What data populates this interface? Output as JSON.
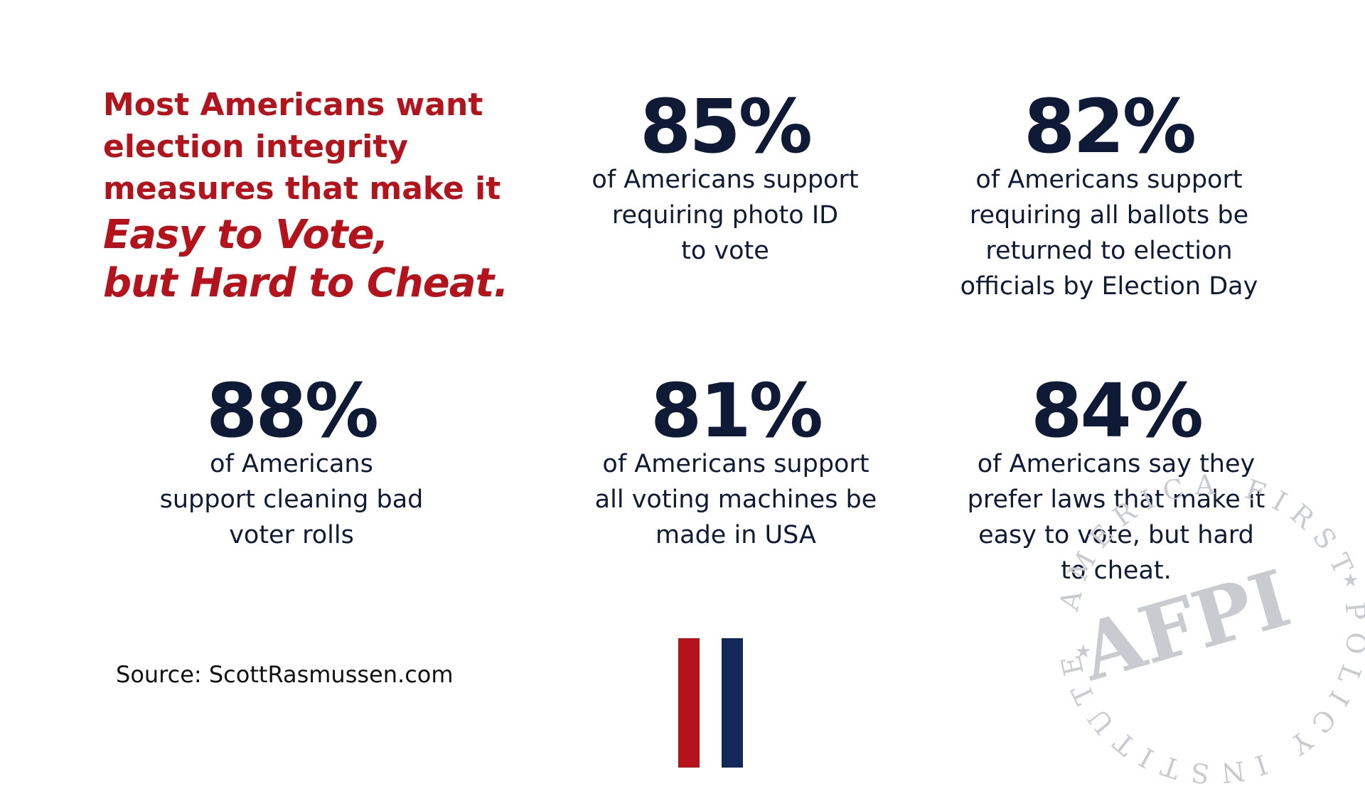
{
  "headline": {
    "lines": [
      "Most Americans want",
      "election integrity",
      "measures that make it"
    ],
    "emphasis": [
      "Easy to Vote,",
      "but Hard to Cheat."
    ],
    "color": "#b5121b"
  },
  "stats": [
    {
      "value": "85%",
      "lines": [
        "of Americans support",
        "requiring photo ID",
        "to vote"
      ]
    },
    {
      "value": "82%",
      "lines": [
        "of Americans support",
        "requiring all ballots be",
        "returned to election",
        "officials by Election Day"
      ]
    },
    {
      "value": "88%",
      "lines": [
        "of Americans",
        "support cleaning bad",
        "voter rolls"
      ]
    },
    {
      "value": "81%",
      "lines": [
        "of Americans support",
        "all voting machines be",
        "made in USA"
      ]
    },
    {
      "value": "84%",
      "lines": [
        "of Americans say they",
        "prefer laws that make it",
        "easy to vote, but hard",
        "to cheat."
      ]
    }
  ],
  "source": "Source: ScottRasmussen.com",
  "seal": {
    "logo_text": "AFPI",
    "ring_text": "AMERICA FIRST POLICY INSTITUTE",
    "color": "#c9cbd1"
  },
  "colors": {
    "navy": "#0e1a36",
    "red": "#b5121b",
    "stripe_blue": "#13285a"
  }
}
